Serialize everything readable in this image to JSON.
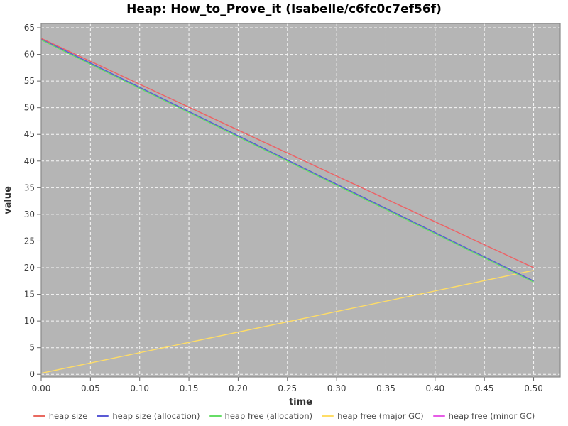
{
  "chart_data": {
    "type": "line",
    "title": "Heap: How_to_Prove_it (Isabelle/c6fc0c7ef56f)",
    "xlabel": "time",
    "ylabel": "value",
    "xlim": [
      0,
      0.527
    ],
    "ylim": [
      -0.5,
      65.8
    ],
    "xticks": [
      0,
      0.05,
      0.1,
      0.15,
      0.2,
      0.25,
      0.3,
      0.35,
      0.4,
      0.45,
      0.5
    ],
    "xtick_labels": [
      "0.00",
      "0.05",
      "0.10",
      "0.15",
      "0.20",
      "0.25",
      "0.30",
      "0.35",
      "0.40",
      "0.45",
      "0.50"
    ],
    "yticks": [
      0,
      5,
      10,
      15,
      20,
      25,
      30,
      35,
      40,
      45,
      50,
      55,
      60,
      65
    ],
    "ytick_labels": [
      "0",
      "5",
      "10",
      "15",
      "20",
      "25",
      "30",
      "35",
      "40",
      "45",
      "50",
      "55",
      "60",
      "65"
    ],
    "grid": true,
    "grid_color": "#ffffff",
    "grid_style": "dashed",
    "plot_background": "#b5b5b5",
    "border_color": "#8a8a8a",
    "tick_text_color": "#3c3c3c",
    "axis_label_color": "#333333",
    "legend_position": "bottom",
    "series": [
      {
        "name": "heap size",
        "color": "#e9695f",
        "x": [
          0,
          0.5
        ],
        "y": [
          63.0,
          20.0
        ]
      },
      {
        "name": "heap size (allocation)",
        "color": "#5a5ad5",
        "x": [
          0,
          0.5
        ],
        "y": [
          62.9,
          17.5
        ]
      },
      {
        "name": "heap free (allocation)",
        "color": "#66dd66",
        "x": [
          0,
          0.5
        ],
        "y": [
          62.7,
          17.3
        ]
      },
      {
        "name": "heap free (major GC)",
        "color": "#ffdd66",
        "x": [
          0,
          0.5
        ],
        "y": [
          0.2,
          19.5
        ]
      },
      {
        "name": "heap free (minor GC)",
        "color": "#e65ce6",
        "x": [
          0,
          0.5
        ],
        "y": [
          63.0,
          20.0
        ]
      }
    ],
    "draw_order": [
      4,
      3,
      2,
      1,
      0
    ]
  }
}
